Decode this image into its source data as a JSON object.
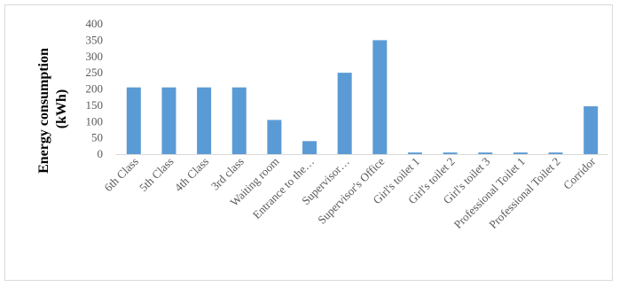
{
  "chart_data": {
    "type": "bar",
    "title": "",
    "xlabel": "",
    "ylabel_lines": [
      "Energy consumption",
      "(kWh)"
    ],
    "categories": [
      "6th Class",
      "5th Class",
      "4th Class",
      "3rd class",
      "Waiting room",
      "Entrance to the…",
      "Supervisor…",
      "Supervisor's Office",
      "Girl's toilet 1",
      "Girl's toilet 2",
      "Girl's toilet 3",
      "Professional Toilet 1",
      "Professional Toilet 2",
      "Corridor"
    ],
    "values": [
      205,
      205,
      205,
      205,
      105,
      40,
      250,
      350,
      5,
      5,
      5,
      5,
      5,
      147
    ],
    "ylim": [
      0,
      400
    ],
    "yticks": [
      0,
      50,
      100,
      150,
      200,
      250,
      300,
      350,
      400
    ],
    "grid": false,
    "legend": "none",
    "bar_color": "#5b9bd5",
    "axis_color": "#d9d9d9"
  }
}
